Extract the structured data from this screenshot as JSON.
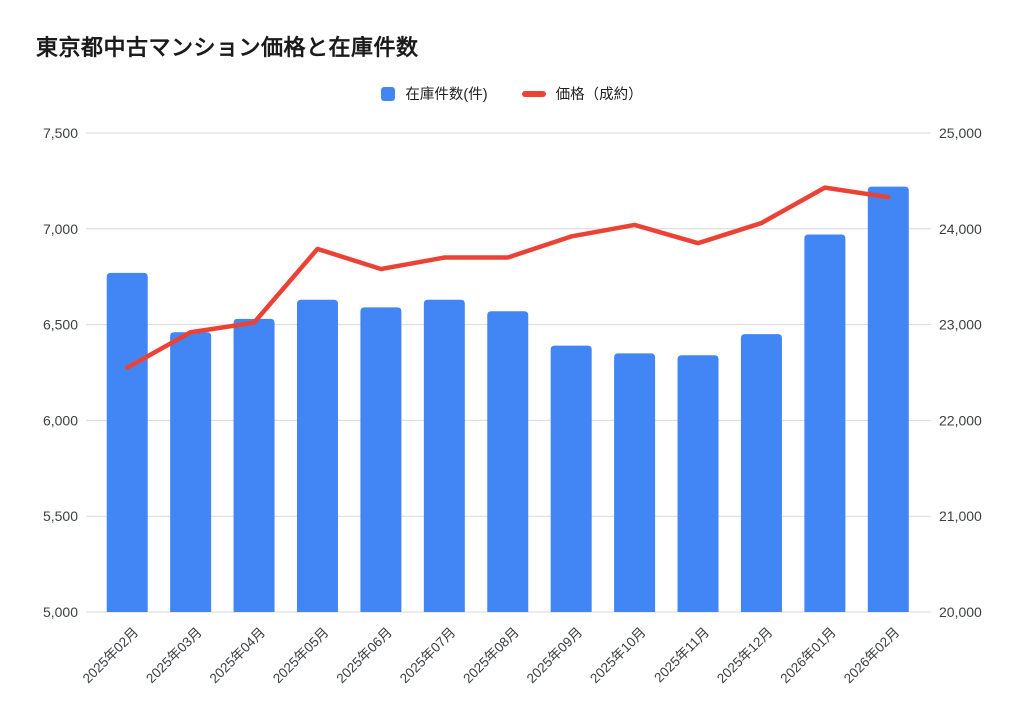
{
  "page": {
    "background": "#ffffff"
  },
  "header": {
    "title": "東京都中古マンション価格と在庫件数"
  },
  "legend": [
    {
      "label": "在庫件数(件)",
      "marker": "square",
      "color": "#4285f4"
    },
    {
      "label": "価格（成約）",
      "marker": "dash",
      "color": "#ea4335"
    }
  ],
  "chart_data": {
    "type": "combo-bar-line",
    "title": "東京都中古マンション価格と在庫件数",
    "categories": [
      "2025年02月",
      "2025年03月",
      "2025年04月",
      "2025年05月",
      "2025年06月",
      "2025年07月",
      "2025年08月",
      "2025年09月",
      "2025年10月",
      "2025年11月",
      "2025年12月",
      "2026年01月",
      "2026年02月"
    ],
    "series": [
      {
        "name": "在庫件数(件)",
        "type": "bar",
        "axis": "left",
        "color": "#4285f4",
        "values": [
          6770,
          6460,
          6530,
          6630,
          6590,
          6630,
          6570,
          6390,
          6350,
          6340,
          6450,
          6970,
          7220
        ]
      },
      {
        "name": "価格（成約）",
        "type": "line",
        "axis": "right",
        "color": "#ea4335",
        "values": [
          22550,
          22920,
          23020,
          23790,
          23580,
          23700,
          23700,
          23920,
          24040,
          23850,
          24060,
          24430,
          24330
        ]
      }
    ],
    "left_axis": {
      "min": 5000,
      "max": 7500,
      "step": 500,
      "ticks": [
        "5,000",
        "5,500",
        "6,000",
        "6,500",
        "7,000",
        "7,500"
      ]
    },
    "right_axis": {
      "min": 20000,
      "max": 25000,
      "step": 1000,
      "ticks": [
        "20,000",
        "21,000",
        "22,000",
        "23,000",
        "24,000",
        "25,000"
      ]
    },
    "grid": true,
    "grid_color": "#d9d9d9",
    "legend_position": "top",
    "x_label_rotation_deg": -45
  }
}
